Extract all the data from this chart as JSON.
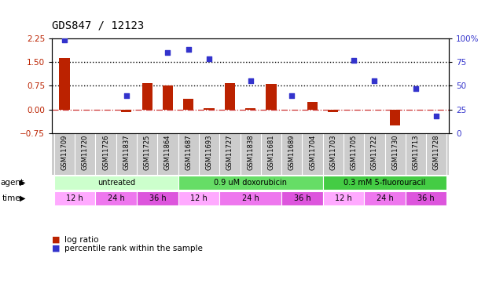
{
  "title": "GDS847 / 12123",
  "samples": [
    "GSM11709",
    "GSM11720",
    "GSM11726",
    "GSM11837",
    "GSM11725",
    "GSM11864",
    "GSM11687",
    "GSM11693",
    "GSM11727",
    "GSM11838",
    "GSM11681",
    "GSM11689",
    "GSM11704",
    "GSM11703",
    "GSM11705",
    "GSM11722",
    "GSM11730",
    "GSM11713",
    "GSM11728"
  ],
  "log_ratio": [
    1.62,
    0.0,
    0.0,
    -0.07,
    0.83,
    0.76,
    0.35,
    0.05,
    0.83,
    0.05,
    0.82,
    0.0,
    0.25,
    -0.07,
    0.0,
    0.0,
    -0.5,
    0.0,
    0.0
  ],
  "pct_rank": [
    98,
    null,
    null,
    40,
    null,
    85,
    88,
    78,
    null,
    55,
    null,
    40,
    null,
    null,
    77,
    55,
    null,
    47,
    18
  ],
  "bar_color": "#bb2200",
  "dot_color": "#3333cc",
  "zero_line_color": "#cc3333",
  "hline1": 1.5,
  "hline2": 0.75,
  "ylim_left": [
    -0.75,
    2.25
  ],
  "ylim_right": [
    0,
    100
  ],
  "yticks_left": [
    -0.75,
    0,
    0.75,
    1.5,
    2.25
  ],
  "yticks_right": [
    0,
    25,
    50,
    75,
    100
  ],
  "agent_groups": [
    {
      "label": "untreated",
      "start": 0,
      "end": 5,
      "color": "#ccffcc"
    },
    {
      "label": "0.9 uM doxorubicin",
      "start": 6,
      "end": 12,
      "color": "#66dd66"
    },
    {
      "label": "0.3 mM 5-fluorouracil",
      "start": 13,
      "end": 18,
      "color": "#44cc44"
    }
  ],
  "time_groups": [
    {
      "label": "12 h",
      "start": 0,
      "end": 1,
      "color": "#ffaaff"
    },
    {
      "label": "24 h",
      "start": 2,
      "end": 3,
      "color": "#ee77ee"
    },
    {
      "label": "36 h",
      "start": 4,
      "end": 5,
      "color": "#dd55dd"
    },
    {
      "label": "12 h",
      "start": 6,
      "end": 7,
      "color": "#ffaaff"
    },
    {
      "label": "24 h",
      "start": 8,
      "end": 10,
      "color": "#ee77ee"
    },
    {
      "label": "36 h",
      "start": 11,
      "end": 12,
      "color": "#dd55dd"
    },
    {
      "label": "12 h",
      "start": 13,
      "end": 14,
      "color": "#ffaaff"
    },
    {
      "label": "24 h",
      "start": 15,
      "end": 16,
      "color": "#ee77ee"
    },
    {
      "label": "36 h",
      "start": 17,
      "end": 18,
      "color": "#dd55dd"
    }
  ],
  "legend_items": [
    {
      "label": "log ratio",
      "color": "#bb2200"
    },
    {
      "label": "percentile rank within the sample",
      "color": "#3333cc"
    }
  ],
  "bg_color": "#ffffff",
  "sample_bg": "#cccccc",
  "title_fontsize": 10
}
